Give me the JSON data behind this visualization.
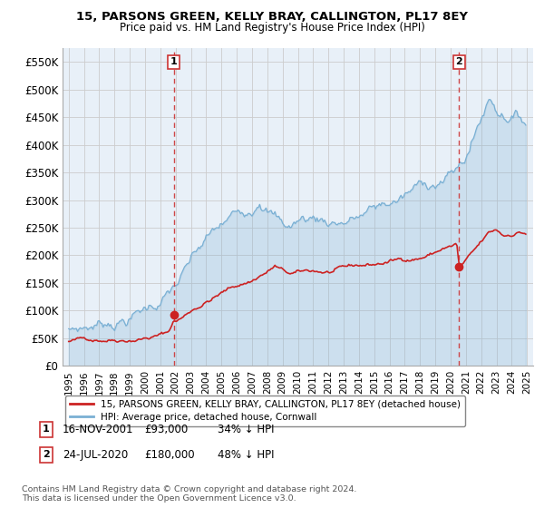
{
  "title": "15, PARSONS GREEN, KELLY BRAY, CALLINGTON, PL17 8EY",
  "subtitle": "Price paid vs. HM Land Registry's House Price Index (HPI)",
  "ylim": [
    0,
    575000
  ],
  "yticks": [
    0,
    50000,
    100000,
    150000,
    200000,
    250000,
    300000,
    350000,
    400000,
    450000,
    500000,
    550000
  ],
  "ytick_labels": [
    "£0",
    "£50K",
    "£100K",
    "£150K",
    "£200K",
    "£250K",
    "£300K",
    "£350K",
    "£400K",
    "£450K",
    "£500K",
    "£550K"
  ],
  "sale1_date": 2001.88,
  "sale1_price": 93000,
  "sale2_date": 2020.56,
  "sale2_price": 180000,
  "legend_line1": "15, PARSONS GREEN, KELLY BRAY, CALLINGTON, PL17 8EY (detached house)",
  "legend_line2": "HPI: Average price, detached house, Cornwall",
  "footnote": "Contains HM Land Registry data © Crown copyright and database right 2024.\nThis data is licensed under the Open Government Licence v3.0.",
  "hpi_color": "#7ab0d4",
  "hpi_fill": "#ddeeff",
  "price_color": "#cc2222",
  "vline_color": "#cc3333",
  "background_color": "#ffffff",
  "grid_color": "#cccccc",
  "plot_bg": "#e8f0f8"
}
